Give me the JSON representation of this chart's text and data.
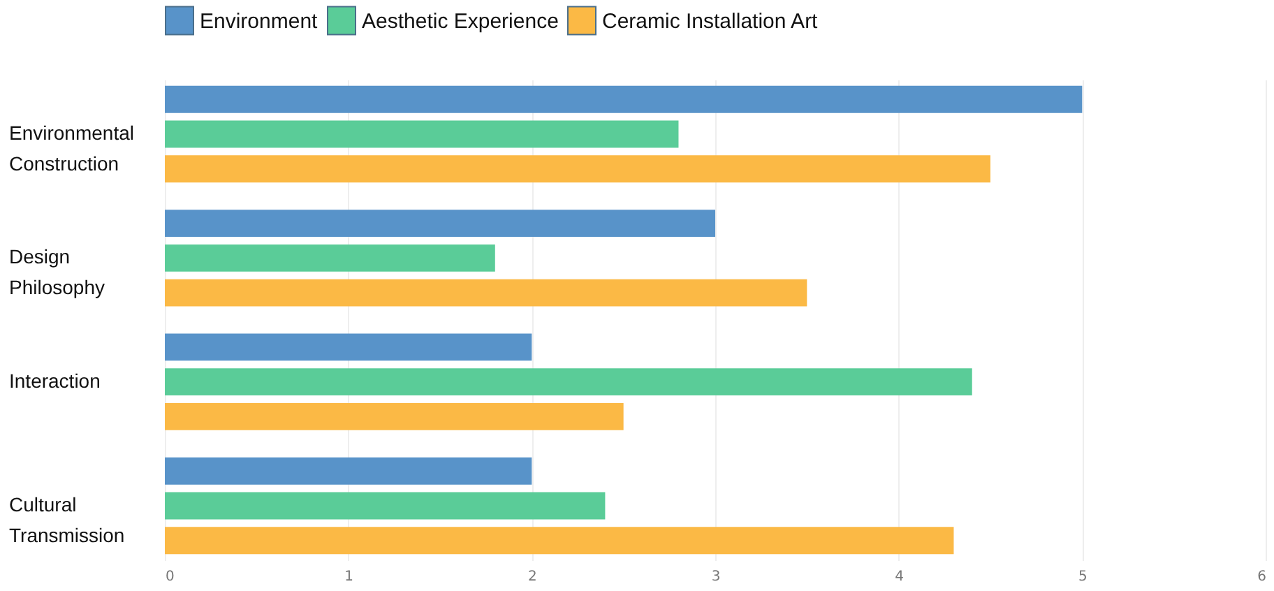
{
  "chart_data": {
    "type": "bar",
    "orientation": "horizontal",
    "categories": [
      "Environmental Construction",
      "Design Philosophy",
      "Interaction",
      "Cultural Transmission"
    ],
    "series": [
      {
        "name": "Environment",
        "color": "#5893c9",
        "values": [
          5,
          3,
          2,
          2
        ]
      },
      {
        "name": "Aesthetic Experience",
        "color": "#5acc98",
        "values": [
          2.8,
          1.8,
          4.4,
          2.4
        ]
      },
      {
        "name": "Ceramic Installation Art",
        "color": "#fbb945",
        "values": [
          4.5,
          3.5,
          2.5,
          4.3
        ]
      }
    ],
    "xlim": [
      0,
      6
    ],
    "xticks": [
      0,
      1,
      2,
      3,
      4,
      5,
      6
    ],
    "grid": "x",
    "legend": "top"
  }
}
